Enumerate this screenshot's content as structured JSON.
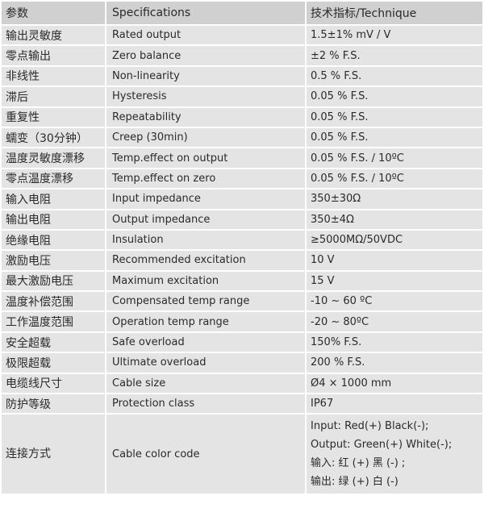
{
  "header": {
    "param": "参数",
    "spec": "Specifications",
    "value": "技术指标/Technique"
  },
  "rows": [
    {
      "param": "输出灵敏度",
      "spec": "Rated output",
      "value": "1.5±1% mV / V"
    },
    {
      "param": "零点输出",
      "spec": "Zero balance",
      "value": "±2 % F.S."
    },
    {
      "param": "非线性",
      "spec": "Non-linearity",
      "value": "0.5 % F.S."
    },
    {
      "param": "滞后",
      "spec": "Hysteresis",
      "value": "0.05 % F.S."
    },
    {
      "param": "重复性",
      "spec": "Repeatability",
      "value": "0.05 % F.S."
    },
    {
      "param": "蠕变（30分钟）",
      "spec": "Creep (30min)",
      "value": "0.05 % F.S."
    },
    {
      "param": "温度灵敏度漂移",
      "spec": "Temp.effect on output",
      "value": "0.05 % F.S. / 10ºC"
    },
    {
      "param": "零点温度漂移",
      "spec": "Temp.effect on zero",
      "value": "0.05 % F.S. / 10ºC"
    },
    {
      "param": "输入电阻",
      "spec": "Input impedance",
      "value": "350±30Ω"
    },
    {
      "param": "输出电阻",
      "spec": "Output impedance",
      "value": "350±4Ω"
    },
    {
      "param": "绝缘电阻",
      "spec": "Insulation",
      "value": "≥5000MΩ/50VDC"
    },
    {
      "param": "激励电压",
      "spec": "Recommended excitation",
      "value": "10 V"
    },
    {
      "param": "最大激励电压",
      "spec": "Maximum excitation",
      "value": "15 V"
    },
    {
      "param": "温度补偿范围",
      "spec": "Compensated temp range",
      "value": "-10 ~ 60 ºC"
    },
    {
      "param": "工作温度范围",
      "spec": "Operation temp range",
      "value": "-20 ~ 80ºC"
    },
    {
      "param": "安全超载",
      "spec": "Safe overload",
      "value": "150% F.S."
    },
    {
      "param": "极限超载",
      "spec": "Ultimate overload",
      "value": "200 % F.S."
    },
    {
      "param": "电缆线尺寸",
      "spec": "Cable size",
      "value": "Ø4 × 1000 mm"
    },
    {
      "param": "防护等级",
      "spec": "Protection class",
      "value": "IP67"
    }
  ],
  "cable": {
    "param": "连接方式",
    "spec": "Cable color code",
    "lines": [
      "Input: Red(+) Black(-);",
      "Output: Green(+) White(-);",
      "输入:  红  (+)      黑 (-) ;",
      "输出:  绿  (+)      白 (-)"
    ]
  }
}
